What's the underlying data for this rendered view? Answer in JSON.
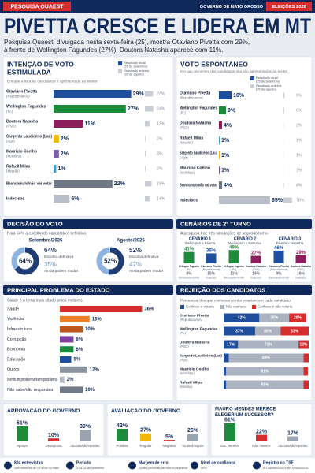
{
  "header": {
    "tag": "PESQUISA QUAEST",
    "state": "GOVERNO DE MATO GROSSO",
    "election": "ELEIÇÕES 2026",
    "title": "PIVETTA CRESCE E LIDERA EM MT",
    "subtitle": [
      "Pesquisa Quaest, divulgada nesta sexta-feira (25), mostra Otaviano Pivetta com 29%,",
      "à frente de Wellington Fagundes (27%). Doutora Natasha aparece com 11%."
    ]
  },
  "stimulated": {
    "title": [
      "INTENÇÃO DE VOTO",
      "ESTIMULADA"
    ],
    "subtitle": "Em que a lista de candidatos é apresentada ao eleitor",
    "legend": [
      {
        "label": [
          "Resultado atual",
          "(25 de setembro)"
        ],
        "color": "#1f4e9c"
      },
      {
        "label": [
          "Resultado anterior",
          "(25 de agosto)"
        ],
        "color": "#c9ced6"
      }
    ],
    "rows": [
      {
        "name": "Otaviano Pivetta",
        "party": "(Republicanos)",
        "value": 29,
        "value_label": "29%",
        "previous": 23,
        "previous_label": "23%",
        "color": "#1f4e9c"
      },
      {
        "name": "Wellington Fagundes",
        "party": "(PL)",
        "value": 27,
        "value_label": "27%",
        "previous": 24,
        "previous_label": "24%",
        "color": "#1e8a3c"
      },
      {
        "name": "Doutora Natasha",
        "party": "(PSD)",
        "value": 11,
        "value_label": "11%",
        "previous": 13,
        "previous_label": "13%",
        "color": "#8b1f5e"
      },
      {
        "name": "Sargento Laudicério (Lau)",
        "party": "(Agir)",
        "value": 2,
        "value_label": "2%",
        "previous": 2,
        "previous_label": "2%",
        "color": "#f2b705"
      },
      {
        "name": "Mauricio Coelho",
        "party": "(Mobiliza)",
        "value": 2,
        "value_label": "2%",
        "previous": 3,
        "previous_label": "3%",
        "color": "#7b5ea7"
      },
      {
        "name": "Rafaell Milas",
        "party": "(Missão)",
        "value": 1,
        "value_label": "1%",
        "previous": 2,
        "previous_label": "2%",
        "color": "#3aa0c8"
      },
      {
        "name": "Branco/nulo/não vai votar",
        "value": 22,
        "value_label": "22%",
        "previous": 19,
        "previous_label": "19%",
        "color": "#6f7884"
      },
      {
        "name": "Indecisos",
        "value": 6,
        "value_label": "6%",
        "previous": 14,
        "previous_label": "14%",
        "color": "#b7bec8"
      }
    ]
  },
  "spontaneous": {
    "title": [
      "VOTO ESPONTÂNEO"
    ],
    "subtitle": "Em que os nomes dos candidatos não são apresentados ao eleitor",
    "legend": [
      {
        "label": [
          "Resultado atual",
          "(25 de setembro)"
        ],
        "color": "#1f4e9c"
      },
      {
        "label": [
          "Resultado anterior",
          "(25 de agosto)"
        ],
        "color": "#c9ced6"
      }
    ],
    "rows": [
      {
        "name": "Otaviano Pivetta",
        "party": "(Republicanos)",
        "value": 16,
        "value_label": "16%",
        "previous": 9,
        "previous_label": "9%",
        "color": "#1f4e9c"
      },
      {
        "name": "Wellington Fagundes",
        "party": "(PL)",
        "value": 9,
        "value_label": "9%",
        "previous": 6,
        "previous_label": "6%",
        "color": "#1e8a3c"
      },
      {
        "name": "Doutora Natasha",
        "party": "(PSD)",
        "value": 4,
        "value_label": "4%",
        "previous": 2,
        "previous_label": "2%",
        "color": "#8b1f5e"
      },
      {
        "name": "Rafaell Milas",
        "party": "(Missão)",
        "value": 1,
        "value_label": "1%",
        "previous": 1,
        "previous_label": "1%",
        "color": "#3aa0c8"
      },
      {
        "name": "Sargento Laudicério (Lau)",
        "party": "(Agir)",
        "value": 1,
        "value_label": "1%",
        "previous": 1,
        "previous_label": "1%",
        "color": "#f2b705"
      },
      {
        "name": "Mauricio Coelho",
        "party": "(Mobiliza)",
        "value": 1,
        "value_label": "1%",
        "previous": 1,
        "previous_label": "1%",
        "color": "#7b5ea7"
      },
      {
        "name": "Branco/nulo/não vai votar",
        "value": 4,
        "value_label": "4%",
        "previous": 4,
        "previous_label": "4%",
        "color": "#6f7884"
      },
      {
        "name": "Indecisos",
        "value": 65,
        "value_label": "65%",
        "previous": 78,
        "previous_label": "78%",
        "color": "#b7bec8"
      }
    ]
  },
  "decision": {
    "title": "DECISÃO DO VOTO",
    "subtitle": "Para 64% a escolha do candidato é definitiva.",
    "definitive_text": "Escolha definitiva",
    "change_text": "Ainda podem mudar",
    "colors": [
      "#1f3c73",
      "#8fb3e0"
    ],
    "periods": [
      {
        "label": "Setembro/2025",
        "definitive": 64,
        "definitive_label": "64%",
        "change": 35,
        "change_label": "35%"
      },
      {
        "label": "Agosto/2025",
        "definitive": 52,
        "definitive_label": "52%",
        "change": 47,
        "change_label": "47%"
      }
    ]
  },
  "runoff": {
    "title": "CENÁRIOS DE 2º TURNO",
    "subtitle": "A pesquisa traz três simulações de segundo turno.",
    "blank_text": "Branco/nulo/não vai votar",
    "undecided_text": "Indecisos",
    "scenarios": [
      {
        "title": "CENÁRIO 1",
        "matchup": "Wellington x Pivetta",
        "candidates": [
          {
            "name": "Wellington Fagundes",
            "party": "(PL)",
            "value": 41,
            "value_label": "41%",
            "color": "#1e8a3c"
          },
          {
            "name": "Otaviano Pivetta",
            "party": "(Republicanos)",
            "value": 36,
            "value_label": "36%",
            "color": "#1f4e9c"
          }
        ],
        "blank": 8,
        "blank_label": "8%",
        "undecided": 15,
        "undecided_label": "15%"
      },
      {
        "title": "CENÁRIO 2",
        "matchup": "Wellington x Natasha",
        "candidates": [
          {
            "name": "Wellington Fagundes",
            "party": "(PL)",
            "value": 48,
            "value_label": "48%",
            "color": "#1e8a3c"
          },
          {
            "name": "Doutora Natasha",
            "party": "(PSD)",
            "value": 27,
            "value_label": "27%",
            "color": "#8b1f5e"
          }
        ],
        "blank": 11,
        "blank_label": "11%",
        "undecided": 14,
        "undecided_label": "14%"
      },
      {
        "title": "CENÁRIO 3",
        "matchup": "Pivetta x Natasha",
        "candidates": [
          {
            "name": "Otaviano Pivetta",
            "party": "(Republicanos)",
            "value": 46,
            "value_label": "46%",
            "color": "#1f4e9c"
          },
          {
            "name": "Doutora Natasha",
            "party": "(PSD)",
            "value": 29,
            "value_label": "29%",
            "color": "#8b1f5e"
          }
        ],
        "blank": 9,
        "blank_label": "9%",
        "undecided": 16,
        "undecided_label": "16%"
      }
    ]
  },
  "problems": {
    "title": "PRINCIPAL PROBLEMA DO ESTADO",
    "subtitle": "Saúde é o tema mais citado pelos eleitores.",
    "items": [
      {
        "label": "Saúde",
        "value": 36,
        "value_label": "36%",
        "color": "#d62c2c"
      },
      {
        "label": "Violência",
        "value": 13,
        "value_label": "13%",
        "color": "#e8822a"
      },
      {
        "label": "Infraestrutura",
        "value": 10,
        "value_label": "10%",
        "color": "#c0561c"
      },
      {
        "label": "Corrupção",
        "value": 6,
        "value_label": "6%",
        "color": "#7b3fa0"
      },
      {
        "label": "Economia",
        "value": 6,
        "value_label": "6%",
        "color": "#1e8a3c"
      },
      {
        "label": "Educação",
        "value": 5,
        "value_label": "5%",
        "color": "#1f4e9c"
      },
      {
        "label": "Outros",
        "value": 12,
        "value_label": "12%",
        "color": "#8a93a0"
      },
      {
        "label": "Nenhum problema/sem problema",
        "value": 2,
        "value_label": "2%",
        "color": "#b7bec8"
      },
      {
        "label": "Não sabe/não respondeu",
        "value": 10,
        "value_label": "10%",
        "color": "#6f7884"
      }
    ]
  },
  "rejection": {
    "title": "REJEIÇÃO DOS CANDIDATOS",
    "subtitle": "Percentual dos que conhecem e não votariam em cada candidato.",
    "legend": [
      {
        "label": "Conhece e votaria",
        "color": "#1f4e9c"
      },
      {
        "label": "Não conhece",
        "color": "#aab3bf"
      },
      {
        "label": "Conhece e não votaria",
        "color": "#d62c2c"
      }
    ],
    "rows": [
      {
        "name": "Otaviano Pivetta",
        "party": "(Republicanos)",
        "values": [
          42,
          35,
          20
        ],
        "value_labels": [
          "42%",
          "35%",
          "20%"
        ]
      },
      {
        "name": "Wellington Fagundes",
        "party": "(PL)",
        "values": [
          37,
          30,
          33
        ],
        "value_labels": [
          "37%",
          "30%",
          "33%"
        ]
      },
      {
        "name": "Doutora Natasha",
        "party": "(PSD)",
        "values": [
          17,
          71,
          12
        ],
        "value_labels": [
          "17%",
          "71%",
          "12%"
        ]
      },
      {
        "name": "Sargento Laudicério (Lau)",
        "party": "(Agir)",
        "values": [
          6,
          88,
          6
        ],
        "value_labels": [
          "6%",
          "88%",
          "6%"
        ]
      },
      {
        "name": "Mauricio Coelho",
        "party": "(Mobiliza)",
        "values": [
          3,
          91,
          5
        ],
        "value_labels": [
          "3%",
          "91%",
          "5%"
        ]
      },
      {
        "name": "Rafaell Milas",
        "party": "(Missão)",
        "values": [
          3,
          91,
          6
        ],
        "value_labels": [
          "3%",
          "91%",
          "6%"
        ]
      }
    ]
  },
  "approval": {
    "title": [
      "APROVAÇÃO DO GOVERNO"
    ],
    "items": [
      {
        "label": "Aprova",
        "value": 51,
        "value_label": "51%",
        "color": "#1e8a3c"
      },
      {
        "label": "Desaprova",
        "value": 10,
        "value_label": "10%",
        "color": "#d62c2c"
      },
      {
        "label": "Não sabe/não respondeu",
        "value": 39,
        "value_label": "39%",
        "color": "#9aa4b1"
      }
    ]
  },
  "evaluation": {
    "title": [
      "AVALIAÇÃO DO GOVERNO"
    ],
    "items": [
      {
        "label": "Positiva",
        "value": 42,
        "value_label": "42%",
        "color": "#1e8a3c"
      },
      {
        "label": "Regular",
        "value": 27,
        "value_label": "27%",
        "color": "#f2b705"
      },
      {
        "label": "Negativa",
        "value": 5,
        "value_label": "5%",
        "color": "#d62c2c"
      },
      {
        "label": "Não sabe/não respondeu",
        "value": 26,
        "value_label": "26%",
        "color": "#9aa4b1"
      }
    ]
  },
  "successor": {
    "title": [
      "MAURO MENDES MERECE",
      "ELEGER UM SUCESSOR?"
    ],
    "items": [
      {
        "label": "Sim, merece",
        "value": 61,
        "value_label": "61%",
        "color": "#1e8a3c"
      },
      {
        "label": "Não merece",
        "value": 22,
        "value_label": "22%",
        "color": "#d62c2c"
      },
      {
        "label": "Não sabe/não respondeu",
        "value": 17,
        "value_label": "17%",
        "color": "#9aa4b1"
      }
    ]
  },
  "footer": [
    {
      "title": "804 entrevistas",
      "text": "com eleitores de 16 anos ou mais"
    },
    {
      "title": "Período",
      "text": "21 a 24 de setembro"
    },
    {
      "title": "Margem de erro",
      "text": "3 pontos percentuais para mais ou para menos"
    },
    {
      "title": "Nível de confiança",
      "text": "95%"
    },
    {
      "title": "Registro no TSE",
      "text": "MT-08096/2026 e BR-09594/2026"
    }
  ]
}
